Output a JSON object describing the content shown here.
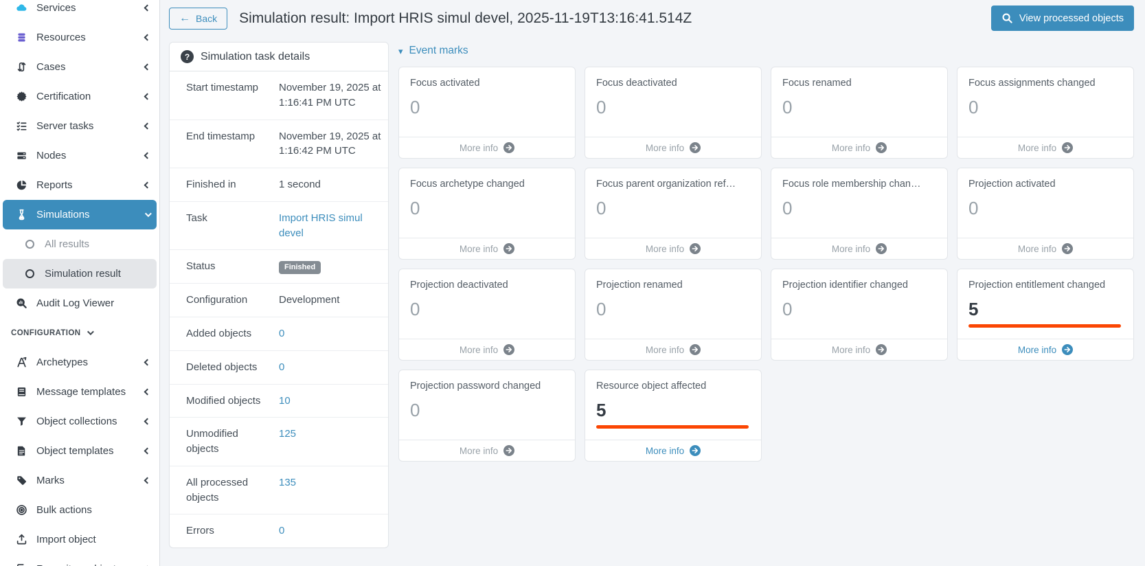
{
  "colors": {
    "accent": "#3c8dbc",
    "highlight_bar": "#fb4603",
    "services_icon": "#2fb8e8",
    "resources_icon": "#6a5fd0"
  },
  "sidebar": {
    "items": [
      {
        "label": "Services",
        "icon": "cloud-icon",
        "icon_color": "#2fb8e8",
        "chevron": "left"
      },
      {
        "label": "Resources",
        "icon": "database-icon",
        "icon_color": "#6a5fd0",
        "chevron": "left"
      },
      {
        "label": "Cases",
        "icon": "cases-icon",
        "chevron": "left"
      },
      {
        "label": "Certification",
        "icon": "certification-icon",
        "chevron": "left"
      },
      {
        "label": "Server tasks",
        "icon": "server-tasks-icon",
        "chevron": "left"
      },
      {
        "label": "Nodes",
        "icon": "nodes-icon",
        "chevron": "left"
      },
      {
        "label": "Reports",
        "icon": "reports-icon",
        "chevron": "left"
      },
      {
        "label": "Simulations",
        "icon": "flask-icon",
        "chevron": "down",
        "state": "active"
      },
      {
        "label": "All results",
        "icon": "circle-icon",
        "state": "muted",
        "indent": true
      },
      {
        "label": "Simulation result",
        "icon": "circle-icon",
        "state": "selected",
        "indent": true
      },
      {
        "label": "Audit Log Viewer",
        "icon": "audit-log-icon"
      },
      {
        "label": "CONFIGURATION",
        "type": "section",
        "chevron": "down"
      },
      {
        "label": "Archetypes",
        "icon": "archetypes-icon",
        "chevron": "left"
      },
      {
        "label": "Message templates",
        "icon": "message-templates-icon",
        "chevron": "left"
      },
      {
        "label": "Object collections",
        "icon": "object-collections-icon",
        "chevron": "left"
      },
      {
        "label": "Object templates",
        "icon": "object-templates-icon",
        "chevron": "left"
      },
      {
        "label": "Marks",
        "icon": "marks-icon",
        "chevron": "left"
      },
      {
        "label": "Bulk actions",
        "icon": "bulk-actions-icon"
      },
      {
        "label": "Import object",
        "icon": "import-object-icon"
      },
      {
        "label": "Repository objects",
        "icon": "repository-objects-icon",
        "chevron": "left"
      }
    ]
  },
  "header": {
    "back_label": "Back",
    "title": "Simulation result: Import HRIS simul devel, 2025-11-19T13:16:41.514Z",
    "view_processed_label": "View processed objects"
  },
  "task_details": {
    "title": "Simulation task details",
    "rows": [
      {
        "label": "Start timestamp",
        "value": "November 19, 2025 at 1:16:41 PM UTC",
        "type": "text"
      },
      {
        "label": "End timestamp",
        "value": "November 19, 2025 at 1:16:42 PM UTC",
        "type": "text"
      },
      {
        "label": "Finished in",
        "value": "1 second",
        "type": "text"
      },
      {
        "label": "Task",
        "value": "Import HRIS simul devel",
        "type": "link"
      },
      {
        "label": "Status",
        "value": "Finished",
        "type": "badge"
      },
      {
        "label": "Configuration",
        "value": "Development",
        "type": "text"
      },
      {
        "label": "Added objects",
        "value": "0",
        "type": "link"
      },
      {
        "label": "Deleted objects",
        "value": "0",
        "type": "link"
      },
      {
        "label": "Modified objects",
        "value": "10",
        "type": "link"
      },
      {
        "label": "Unmodified objects",
        "value": "125",
        "type": "link"
      },
      {
        "label": "All processed objects",
        "value": "135",
        "type": "link"
      },
      {
        "label": "Errors",
        "value": "0",
        "type": "link"
      }
    ]
  },
  "event_marks": {
    "title": "Event marks",
    "more_info_label": "More info",
    "cards": [
      {
        "title": "Focus activated",
        "value": "0",
        "highlighted": false
      },
      {
        "title": "Focus deactivated",
        "value": "0",
        "highlighted": false
      },
      {
        "title": "Focus renamed",
        "value": "0",
        "highlighted": false
      },
      {
        "title": "Focus assignments changed",
        "value": "0",
        "highlighted": false
      },
      {
        "title": "Focus archetype changed",
        "value": "0",
        "highlighted": false
      },
      {
        "title": "Focus parent organization ref…",
        "value": "0",
        "highlighted": false
      },
      {
        "title": "Focus role membership chan…",
        "value": "0",
        "highlighted": false
      },
      {
        "title": "Projection activated",
        "value": "0",
        "highlighted": false
      },
      {
        "title": "Projection deactivated",
        "value": "0",
        "highlighted": false
      },
      {
        "title": "Projection renamed",
        "value": "0",
        "highlighted": false
      },
      {
        "title": "Projection identifier changed",
        "value": "0",
        "highlighted": false
      },
      {
        "title": "Projection entitlement changed",
        "value": "5",
        "highlighted": true
      },
      {
        "title": "Projection password changed",
        "value": "0",
        "highlighted": false
      },
      {
        "title": "Resource object affected",
        "value": "5",
        "highlighted": true
      }
    ]
  }
}
